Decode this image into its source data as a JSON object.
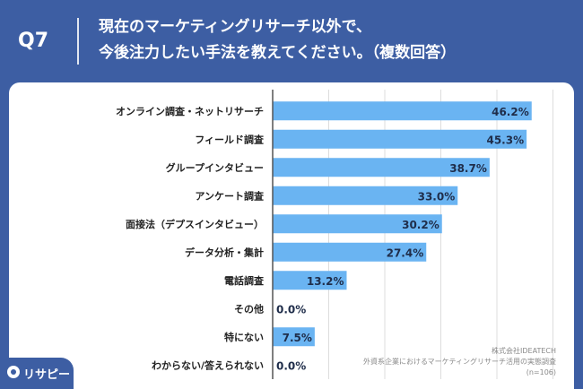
{
  "header": {
    "question_number": "Q7",
    "title_line1": "現在のマーケティングリサーチ以外で、",
    "title_line2": "今後注力したい手法を教えてください。（複数回答）"
  },
  "source": {
    "line1": "株式会社IDEATECH",
    "line2": "外資系企業におけるマーケティングリサーチ活用の実態調査",
    "line3": "(n=106)"
  },
  "logo": {
    "text": "リサピー",
    "icon": "risapi-logo-icon"
  },
  "colors": {
    "bar": "#6ab4f2",
    "background": "#3d5ea3",
    "card": "#ffffff",
    "axis": "#555555",
    "grid": "#dddddd"
  },
  "chart_data": {
    "type": "bar",
    "orientation": "horizontal",
    "categories": [
      "オンライン調査・ネットリサーチ",
      "フィールド調査",
      "グループインタビュー",
      "アンケート調査",
      "面接法（デプスインタビュー）",
      "データ分析・集計",
      "電話調査",
      "その他",
      "特にない",
      "わからない/答えられない"
    ],
    "values": [
      46.2,
      45.3,
      38.7,
      33.0,
      30.2,
      27.4,
      13.2,
      0.0,
      7.5,
      0.0
    ],
    "value_labels": [
      "46.2%",
      "45.3%",
      "38.7%",
      "33.0%",
      "30.2%",
      "27.4%",
      "13.2%",
      "0.0%",
      "7.5%",
      "0.0%"
    ],
    "xlim": [
      0,
      50
    ],
    "grid": true,
    "legend": "none"
  }
}
